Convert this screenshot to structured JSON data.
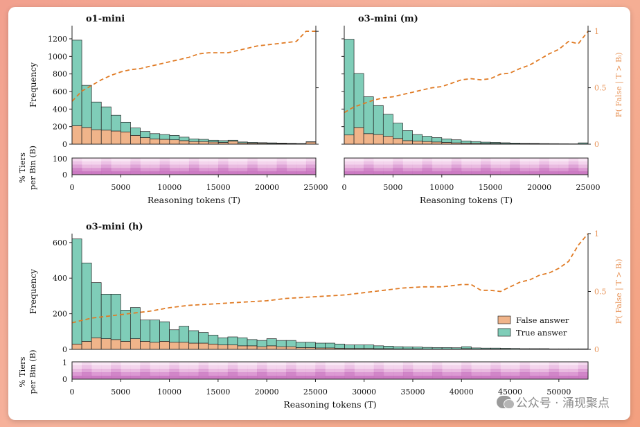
{
  "watermark": "公众号 · 涌现聚点",
  "colors": {
    "true_answer": "#7fcdb8",
    "false_answer": "#f0b48a",
    "cdf_line": "#e07b25",
    "right_axis": "#e8955a",
    "heat_dark": "#c262b8"
  },
  "chart_data": [
    {
      "type": "bar",
      "panel": "top-left",
      "title": "o1-mini",
      "xlabel": "Reasoning tokens (T)",
      "ylabel": "Frequency",
      "y2label": "ℙ( False | T > Bᵢ)",
      "heat_ylabel": "% Tiers per Bin (B)",
      "xlim": [
        0,
        25000
      ],
      "ylim": [
        0,
        1350
      ],
      "y2lim": [
        0,
        1.05
      ],
      "xticks": [
        "0",
        "5000",
        "10000",
        "15000",
        "20000",
        "25000"
      ],
      "yticks": [
        "0",
        "200",
        "400",
        "600",
        "800",
        "1000",
        "1200"
      ],
      "y2ticks": [
        "0",
        "0.5",
        "1"
      ],
      "heat_yticks": [
        "0",
        "100"
      ],
      "bin_width": 1000,
      "series": [
        {
          "name": "False answer",
          "values": [
            210,
            190,
            165,
            160,
            150,
            140,
            100,
            75,
            60,
            55,
            50,
            40,
            30,
            30,
            25,
            20,
            35,
            15,
            12,
            10,
            8,
            8,
            6,
            5,
            25
          ]
        },
        {
          "name": "True answer",
          "values": [
            975,
            480,
            315,
            265,
            180,
            110,
            85,
            70,
            60,
            55,
            50,
            40,
            30,
            25,
            20,
            20,
            10,
            10,
            8,
            7,
            7,
            5,
            4,
            3,
            3
          ]
        }
      ],
      "cdf_x": [
        0,
        1000,
        2000,
        3000,
        4000,
        5000,
        6000,
        7000,
        8000,
        9000,
        10000,
        11000,
        12000,
        13000,
        14000,
        15000,
        16000,
        17000,
        18000,
        19000,
        20000,
        21000,
        22000,
        23000,
        24000,
        25000
      ],
      "cdf": [
        0.38,
        0.47,
        0.52,
        0.57,
        0.61,
        0.64,
        0.66,
        0.67,
        0.69,
        0.71,
        0.73,
        0.75,
        0.77,
        0.8,
        0.81,
        0.81,
        0.81,
        0.83,
        0.85,
        0.87,
        0.88,
        0.89,
        0.9,
        0.91,
        1.0,
        1.0
      ]
    },
    {
      "type": "bar",
      "panel": "top-right",
      "title": "o3-mini (m)",
      "xlabel": "Reasoning tokens (T)",
      "ylabel": "",
      "y2label": "ℙ( False | T > Bᵢ)",
      "xlim": [
        0,
        25000
      ],
      "ylim": [
        0,
        1350
      ],
      "y2lim": [
        0,
        1.05
      ],
      "xticks": [
        "0",
        "5000",
        "10000",
        "15000",
        "20000",
        "25000"
      ],
      "y2ticks": [
        "0",
        "0.5",
        "1"
      ],
      "bin_width": 1000,
      "series": [
        {
          "name": "False answer",
          "values": [
            105,
            190,
            120,
            110,
            90,
            65,
            40,
            35,
            30,
            25,
            20,
            15,
            12,
            10,
            8,
            8,
            6,
            5,
            4,
            4,
            3,
            3,
            2,
            2,
            3
          ]
        },
        {
          "name": "True answer",
          "values": [
            1090,
            615,
            420,
            330,
            250,
            175,
            115,
            75,
            60,
            50,
            40,
            35,
            25,
            20,
            15,
            12,
            10,
            8,
            6,
            5,
            4,
            3,
            3,
            2,
            12
          ]
        }
      ],
      "cdf_x": [
        0,
        1000,
        2000,
        3000,
        4000,
        5000,
        6000,
        7000,
        8000,
        9000,
        10000,
        11000,
        12000,
        13000,
        14000,
        15000,
        16000,
        17000,
        18000,
        19000,
        20000,
        21000,
        22000,
        23000,
        24000,
        25000
      ],
      "cdf": [
        0.28,
        0.33,
        0.36,
        0.39,
        0.41,
        0.42,
        0.44,
        0.46,
        0.48,
        0.5,
        0.51,
        0.54,
        0.57,
        0.58,
        0.57,
        0.58,
        0.62,
        0.63,
        0.67,
        0.7,
        0.75,
        0.8,
        0.84,
        0.91,
        0.89,
        1.0
      ]
    },
    {
      "type": "bar",
      "panel": "bottom",
      "title": "o3-mini (h)",
      "xlabel": "Reasoning tokens (T)",
      "ylabel": "Frequency",
      "y2label": "ℙ( False | T > Bᵢ)",
      "heat_ylabel": "% Tiers per Bin (B)",
      "xlim": [
        0,
        53000
      ],
      "ylim": [
        0,
        650
      ],
      "y2lim": [
        0,
        1.0
      ],
      "xticks": [
        "0",
        "5000",
        "10000",
        "15000",
        "20000",
        "25000",
        "30000",
        "35000",
        "40000",
        "45000",
        "50000"
      ],
      "yticks": [
        "0",
        "200",
        "400",
        "600"
      ],
      "y2ticks": [
        "0",
        "0.5",
        "1"
      ],
      "heat_yticks": [
        "0",
        "1"
      ],
      "bin_width": 1000,
      "legend_position": "lower-right",
      "series": [
        {
          "name": "False answer",
          "values": [
            30,
            45,
            65,
            60,
            55,
            45,
            60,
            45,
            40,
            45,
            40,
            40,
            35,
            35,
            30,
            25,
            25,
            20,
            20,
            15,
            20,
            15,
            15,
            10,
            10,
            8,
            8,
            6,
            5,
            5,
            5,
            4,
            4,
            3,
            3,
            3,
            2,
            2,
            2,
            2,
            4,
            2,
            2,
            2,
            2,
            1,
            1,
            1,
            1,
            1,
            1,
            1,
            1
          ]
        },
        {
          "name": "True answer",
          "values": [
            590,
            440,
            310,
            250,
            255,
            175,
            175,
            120,
            125,
            110,
            70,
            90,
            70,
            60,
            50,
            40,
            45,
            45,
            35,
            35,
            40,
            35,
            35,
            30,
            30,
            27,
            27,
            24,
            20,
            20,
            20,
            16,
            14,
            12,
            11,
            10,
            9,
            8,
            8,
            7,
            11,
            6,
            5,
            5,
            4,
            4,
            3,
            3,
            3,
            2,
            2,
            2,
            2
          ]
        }
      ],
      "cdf_x": [
        0,
        2000,
        4000,
        6000,
        8000,
        10000,
        12000,
        14000,
        16000,
        18000,
        20000,
        22000,
        24000,
        26000,
        28000,
        30000,
        32000,
        34000,
        36000,
        38000,
        40000,
        41000,
        42000,
        43000,
        44000,
        45000,
        46000,
        47000,
        48000,
        49000,
        50000,
        51000,
        52000,
        53000
      ],
      "cdf": [
        0.23,
        0.27,
        0.29,
        0.31,
        0.33,
        0.36,
        0.38,
        0.39,
        0.4,
        0.41,
        0.42,
        0.44,
        0.45,
        0.46,
        0.47,
        0.49,
        0.51,
        0.53,
        0.54,
        0.54,
        0.56,
        0.56,
        0.51,
        0.51,
        0.5,
        0.54,
        0.58,
        0.6,
        0.64,
        0.66,
        0.7,
        0.76,
        0.9,
        1.0
      ]
    }
  ]
}
